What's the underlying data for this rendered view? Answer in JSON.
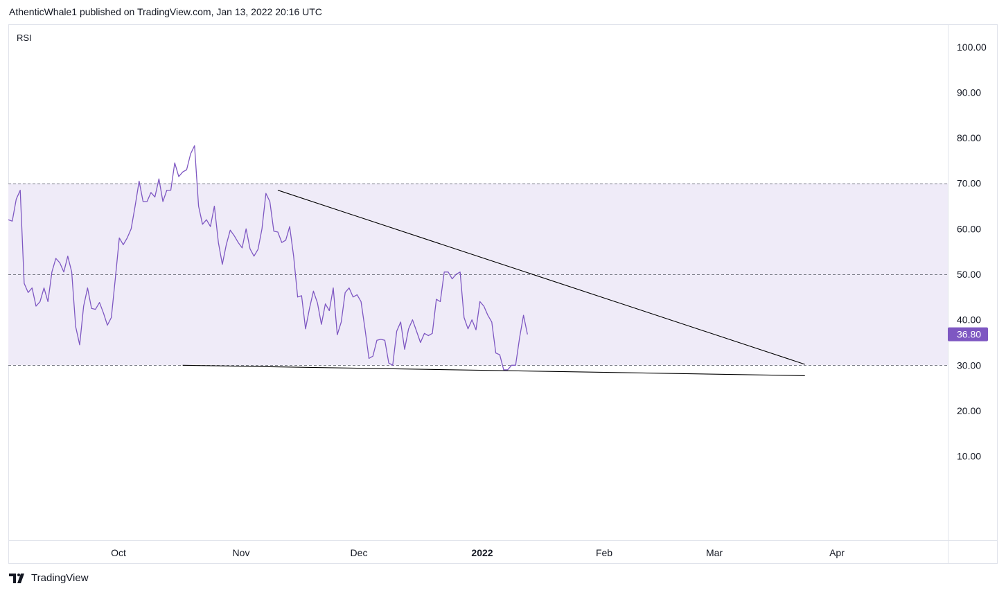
{
  "header": {
    "published_text": "AthenticWhale1 published on TradingView.com, Jan 13, 2022 20:16 UTC"
  },
  "footer": {
    "brand": "TradingView"
  },
  "colors": {
    "rsi_line": "#7e57c2",
    "band_fill": "#efebf8",
    "trendline": "#000000",
    "dashed_level": "#787b86",
    "badge_bg": "#7e57c2"
  },
  "chart_data": {
    "type": "line",
    "indicator_label": "RSI",
    "current_value_label": "36.80",
    "y_tick_labels": [
      "100.00",
      "90.00",
      "80.00",
      "70.00",
      "60.00",
      "50.00",
      "40.00",
      "30.00",
      "20.00",
      "10.00"
    ],
    "x_tick_labels": [
      "Oct",
      "Nov",
      "Dec",
      "2022",
      "Feb",
      "Mar",
      "Apr"
    ],
    "ylim": [
      -8.5,
      105
    ],
    "band": [
      30,
      70
    ],
    "levels": [
      70,
      50,
      30
    ],
    "grid": false,
    "series": [
      {
        "values": [
          62.0,
          61.7,
          66.5,
          68.5,
          48.0,
          46.0,
          47.0,
          43.0,
          44.0,
          47.0,
          44.0,
          50.5,
          53.5,
          52.5,
          50.5,
          54.0,
          50.5,
          38.5,
          34.5,
          43.0,
          47.0,
          42.5,
          42.3,
          43.8,
          41.5,
          38.8,
          40.5,
          49.0,
          58.0,
          56.5,
          58.0,
          60.0,
          65.0,
          70.5,
          66.0,
          66.0,
          68.0,
          67.0,
          71.0,
          66.0,
          68.5,
          68.5,
          74.5,
          71.5,
          72.5,
          73.0,
          76.5,
          78.3,
          65.0,
          61.0,
          62.0,
          60.5,
          65.0,
          57.0,
          52.2,
          56.5,
          59.7,
          58.5,
          57.0,
          55.8,
          60.0,
          55.6,
          54.0,
          55.5,
          60.0,
          67.8,
          66.0,
          59.5,
          59.3,
          57.0,
          57.5,
          60.5,
          54.0,
          45.0,
          45.3,
          38.0,
          42.5,
          46.3,
          43.7,
          39.0,
          43.5,
          42.0,
          47.0,
          36.7,
          39.5,
          46.0,
          47.0,
          45.0,
          45.5,
          44.0,
          38.0,
          31.5,
          32.0,
          35.5,
          35.7,
          35.5,
          30.5,
          30.0,
          37.5,
          39.5,
          33.5,
          38.0,
          40.0,
          37.5,
          35.0,
          37.0,
          36.5,
          37.0,
          44.5,
          44.0,
          50.5,
          50.5,
          49.0,
          50.0,
          50.5,
          40.5,
          38.0,
          40.0,
          37.8,
          44.0,
          43.0,
          41.0,
          39.5,
          32.7,
          32.3,
          29.0,
          29.0,
          30.0,
          30.0,
          36.0,
          41.0,
          36.8
        ]
      }
    ],
    "trendlines": [
      {
        "from": [
          -8,
          68.5
        ],
        "to": [
          125,
          30.2
        ]
      },
      {
        "from": [
          -32,
          30.0
        ],
        "to": [
          125,
          27.7
        ]
      }
    ]
  }
}
